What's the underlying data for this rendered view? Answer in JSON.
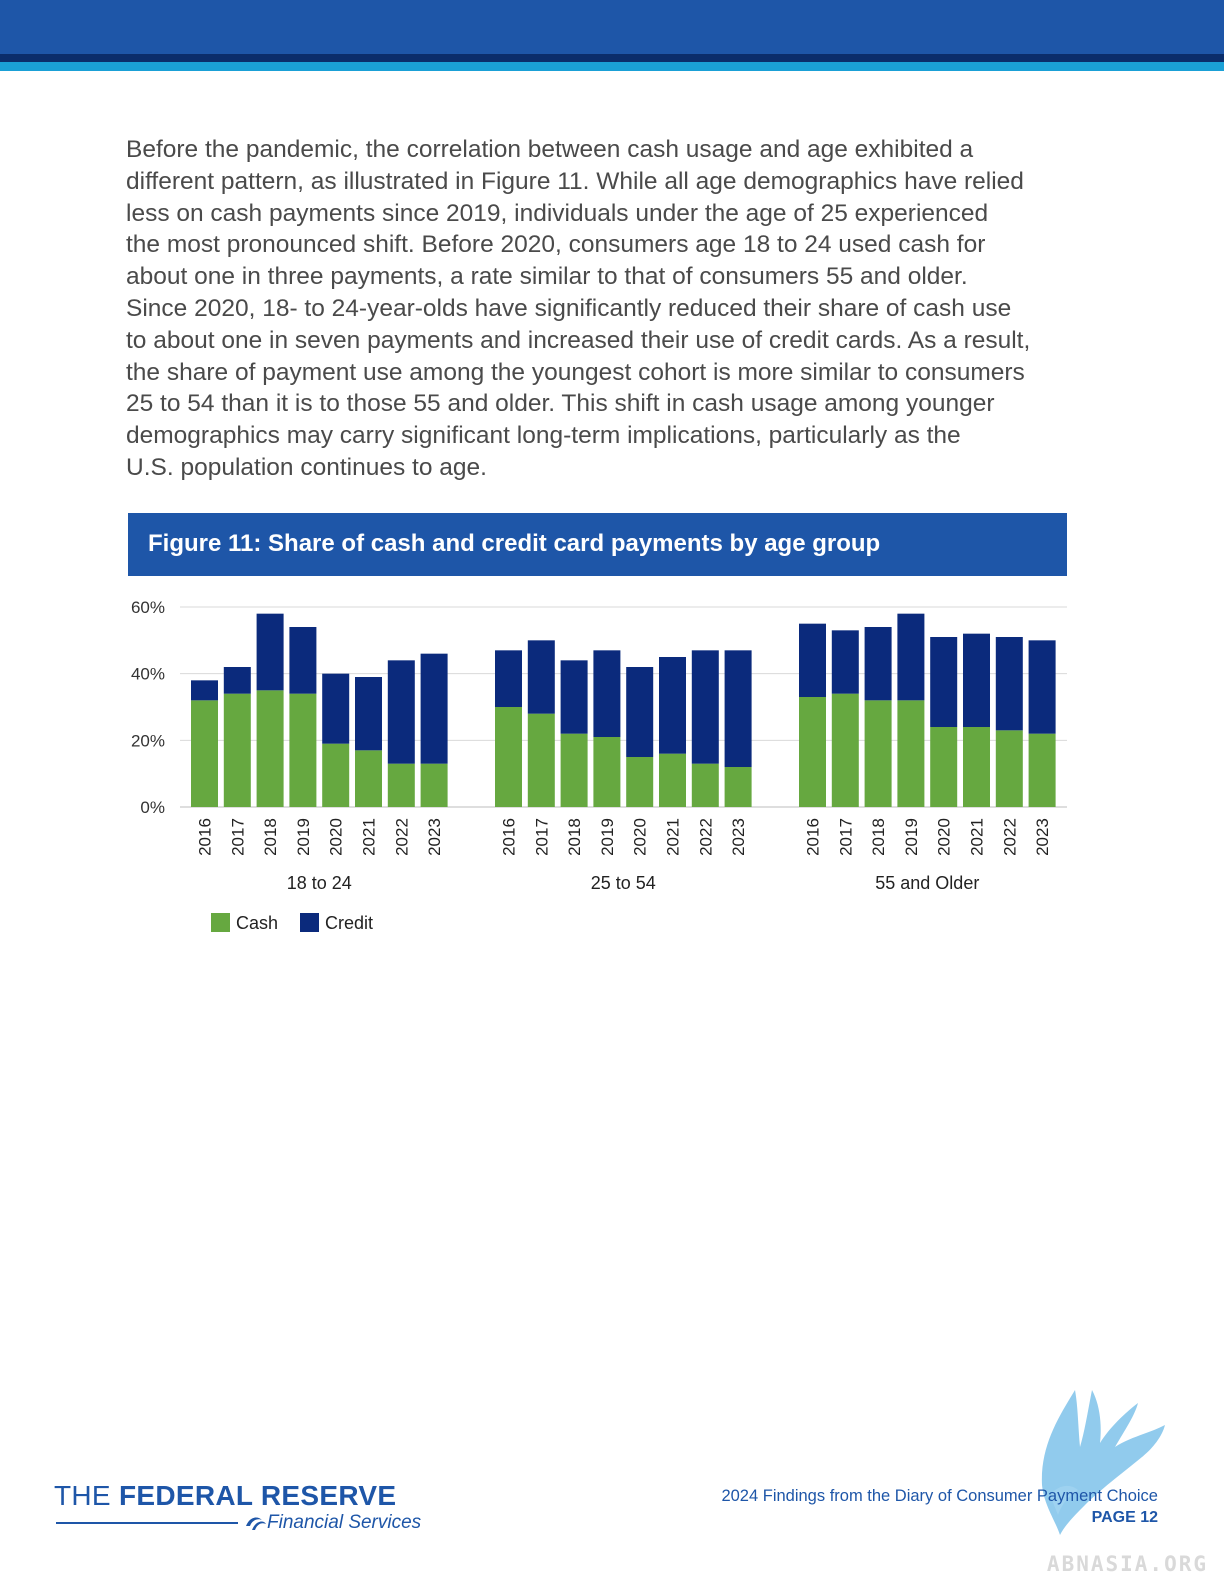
{
  "body": {
    "lines": [
      "Before the pandemic, the correlation between cash usage and age exhibited a",
      "different pattern, as illustrated in Figure 11. While all age demographics have relied",
      "less on cash payments since 2019, individuals under the age of 25 experienced",
      "the most pronounced shift. Before 2020, consumers age 18 to 24 used cash for",
      "about one in three payments, a rate similar to that of consumers 55 and older.",
      "Since 2020, 18- to 24-year-olds have significantly reduced their share of cash use",
      "to about one in seven payments and increased their use of credit cards. As a result,",
      "the share of payment use among the youngest cohort is more similar to consumers",
      "25 to 54 than it is to those 55 and older. This shift in cash usage among younger",
      "demographics may carry significant long-term implications, particularly as the",
      "U.S. population continues to age."
    ]
  },
  "figure": {
    "title": "Figure 11: Share of cash and credit card payments by age group"
  },
  "chart_data": {
    "type": "bar",
    "stacked": true,
    "ylim": [
      0,
      60
    ],
    "yticks": [
      0,
      20,
      40,
      60
    ],
    "ytick_labels": [
      "0%",
      "20%",
      "40%",
      "60%"
    ],
    "grid": true,
    "legend_position": "bottom-left",
    "groups": [
      "18 to 24",
      "25 to 54",
      "55 and Older"
    ],
    "years": [
      "2016",
      "2017",
      "2018",
      "2019",
      "2020",
      "2021",
      "2022",
      "2023"
    ],
    "series": [
      {
        "name": "Cash",
        "color": "#66a840",
        "values": [
          [
            32,
            34,
            35,
            34,
            19,
            17,
            13,
            13
          ],
          [
            30,
            28,
            22,
            21,
            15,
            16,
            13,
            12
          ],
          [
            33,
            34,
            32,
            32,
            24,
            24,
            23,
            22
          ]
        ]
      },
      {
        "name": "Credit",
        "color": "#0b2a7c",
        "values": [
          [
            6,
            8,
            23,
            20,
            21,
            22,
            31,
            33
          ],
          [
            17,
            22,
            22,
            26,
            27,
            29,
            34,
            35
          ],
          [
            22,
            19,
            22,
            26,
            27,
            28,
            28,
            28
          ]
        ]
      }
    ]
  },
  "footer": {
    "logo_the": "THE",
    "logo_fed": "FEDERAL RESERVE",
    "logo_fs": "Financial Services",
    "doc_title": "2024 Findings from the Diary of Consumer Payment Choice",
    "page_label": "PAGE 12"
  },
  "watermark": {
    "text": "ABNASIA.ORG"
  },
  "colors": {
    "brand_blue": "#1e56a8",
    "cash_green": "#66a840",
    "credit_navy": "#0b2a7c"
  }
}
